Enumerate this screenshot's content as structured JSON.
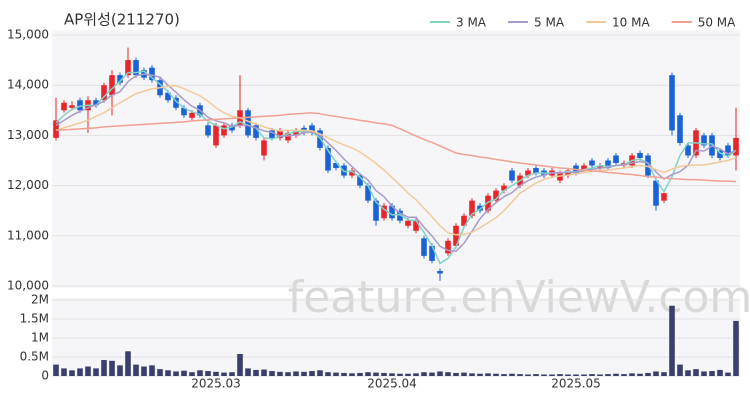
{
  "chart_data": {
    "type": "candlestick",
    "title": "AP위성(211270)",
    "watermark": "feature.enViewV.com",
    "up_color": "#e8252b",
    "down_color": "#1a63d6",
    "grid": true,
    "legend": "top-right",
    "x": [
      null,
      null,
      null,
      null,
      null,
      null,
      null,
      null,
      null,
      null,
      null,
      null,
      null,
      null,
      null,
      null,
      null,
      null,
      null,
      null,
      "2025.03",
      null,
      null,
      null,
      null,
      null,
      null,
      null,
      null,
      null,
      null,
      null,
      null,
      null,
      null,
      null,
      null,
      null,
      null,
      null,
      null,
      null,
      "2025.04",
      null,
      null,
      null,
      null,
      null,
      null,
      null,
      null,
      null,
      null,
      null,
      null,
      null,
      null,
      null,
      null,
      null,
      null,
      null,
      null,
      null,
      null,
      "2025.05",
      null,
      null,
      null,
      null,
      null,
      null,
      null,
      null,
      null,
      null,
      null,
      null,
      null,
      null,
      null,
      null,
      null,
      null,
      null,
      null
    ],
    "open": [
      12950,
      13500,
      13550,
      13700,
      13500,
      13700,
      13700,
      13800,
      14200,
      14200,
      14500,
      14300,
      14350,
      14100,
      13850,
      13750,
      13550,
      13350,
      13600,
      13200,
      12800,
      13000,
      13200,
      13200,
      13500,
      13200,
      12600,
      13100,
      12950,
      12900,
      13000,
      13150,
      13200,
      13100,
      12750,
      12450,
      12400,
      12200,
      12200,
      12000,
      11700,
      11350,
      11600,
      11500,
      11200,
      11100,
      10950,
      10800,
      10300,
      10650,
      10800,
      11200,
      11400,
      11600,
      11500,
      11700,
      11900,
      12300,
      12000,
      12200,
      12350,
      12300,
      12200,
      12100,
      12200,
      12400,
      12300,
      12500,
      12350,
      12500,
      12600,
      12400,
      12400,
      12650,
      12600,
      12100,
      11700,
      14200,
      13400,
      12800,
      12600,
      13000,
      13000,
      12700,
      12800,
      12600
    ],
    "high": [
      13750,
      13700,
      13680,
      13750,
      13780,
      13750,
      14050,
      14300,
      14250,
      14750,
      14550,
      14350,
      14400,
      14150,
      13900,
      13800,
      13600,
      13500,
      13650,
      13250,
      13250,
      13250,
      13250,
      14200,
      13550,
      13250,
      12950,
      13150,
      13150,
      13100,
      13150,
      13200,
      13250,
      13150,
      12800,
      12500,
      12450,
      12350,
      12250,
      12050,
      11750,
      11650,
      11650,
      11550,
      11350,
      11350,
      11000,
      10850,
      10350,
      10950,
      11250,
      11450,
      11750,
      11650,
      11850,
      11950,
      12050,
      12350,
      12250,
      12350,
      12400,
      12350,
      12350,
      12300,
      12350,
      12450,
      12450,
      12550,
      12450,
      12550,
      12650,
      12500,
      12650,
      12700,
      12650,
      12150,
      11900,
      14250,
      13450,
      12850,
      13150,
      13050,
      13050,
      12750,
      12850,
      13550
    ],
    "low": [
      12900,
      13450,
      13500,
      13450,
      13050,
      13550,
      13650,
      13400,
      14000,
      14150,
      14150,
      14100,
      14050,
      13750,
      13650,
      13500,
      13350,
      13300,
      13350,
      12950,
      12750,
      12950,
      13050,
      13150,
      12950,
      12900,
      12500,
      12900,
      12900,
      12850,
      12950,
      13000,
      13000,
      12700,
      12250,
      12300,
      12150,
      12150,
      11950,
      11650,
      11200,
      11300,
      11300,
      11250,
      11150,
      11050,
      10550,
      10450,
      10100,
      10600,
      10750,
      11150,
      11350,
      11450,
      11450,
      11650,
      11850,
      12050,
      11950,
      12150,
      12200,
      12150,
      12150,
      12050,
      12150,
      12200,
      12250,
      12350,
      12300,
      12300,
      12400,
      12350,
      12350,
      12500,
      12150,
      11500,
      11650,
      13000,
      12800,
      12550,
      12550,
      12750,
      12550,
      12500,
      12550,
      12300
    ],
    "close": [
      13300,
      13650,
      13600,
      13500,
      13700,
      13600,
      14000,
      14200,
      14050,
      14500,
      14200,
      14150,
      14100,
      13800,
      13700,
      13550,
      13400,
      13450,
      13400,
      13000,
      13200,
      13200,
      13100,
      13500,
      13000,
      12950,
      12900,
      12950,
      13100,
      13050,
      13100,
      13050,
      13050,
      12750,
      12300,
      12350,
      12200,
      12300,
      12000,
      11700,
      11300,
      11600,
      11350,
      11300,
      11300,
      11300,
      10600,
      10500,
      10250,
      10900,
      11200,
      11400,
      11700,
      11500,
      11800,
      11900,
      12000,
      12100,
      12200,
      12300,
      12250,
      12200,
      12300,
      12250,
      12300,
      12250,
      12400,
      12400,
      12400,
      12350,
      12450,
      12450,
      12600,
      12550,
      12200,
      11600,
      11850,
      13100,
      12850,
      12600,
      13100,
      12800,
      12600,
      12550,
      12600,
      12950
    ],
    "series": [
      {
        "name": "3 MA",
        "color": "#7fd3c6",
        "values": [
          13250,
          13400,
          13520,
          13580,
          13600,
          13600,
          13770,
          13930,
          14080,
          14250,
          14250,
          14280,
          14150,
          14020,
          13870,
          13680,
          13550,
          13470,
          13420,
          13280,
          13200,
          13130,
          13170,
          13270,
          13200,
          13150,
          12950,
          12930,
          12980,
          13030,
          13080,
          13070,
          13070,
          12950,
          12700,
          12470,
          12280,
          12280,
          12170,
          12000,
          11670,
          11530,
          11420,
          11420,
          11320,
          11300,
          11070,
          10800,
          10450,
          10550,
          10780,
          11170,
          11430,
          11530,
          11670,
          11730,
          11900,
          12000,
          12100,
          12200,
          12250,
          12250,
          12250,
          12250,
          12280,
          12270,
          12320,
          12350,
          12400,
          12380,
          12400,
          12420,
          12500,
          12530,
          12450,
          12120,
          11880,
          12180,
          12600,
          12850,
          12850,
          12830,
          12830,
          12650,
          12580,
          12700
        ]
      },
      {
        "name": "5 MA",
        "color": "#a99ac8",
        "values": [
          13200,
          13300,
          13400,
          13480,
          13550,
          13610,
          13680,
          13800,
          13870,
          14070,
          14190,
          14220,
          14200,
          14160,
          14000,
          13860,
          13710,
          13580,
          13500,
          13360,
          13290,
          13250,
          13180,
          13200,
          13200,
          13150,
          13090,
          13060,
          12980,
          12990,
          13010,
          13050,
          13070,
          13000,
          12850,
          12700,
          12530,
          12380,
          12230,
          12110,
          11900,
          11780,
          11590,
          11450,
          11370,
          11370,
          11170,
          11000,
          10790,
          10710,
          10690,
          10850,
          11090,
          11340,
          11520,
          11660,
          11780,
          11860,
          12000,
          12100,
          12170,
          12210,
          12250,
          12260,
          12260,
          12260,
          12300,
          12320,
          12350,
          12360,
          12400,
          12410,
          12450,
          12480,
          12450,
          12270,
          12130,
          12220,
          12280,
          12400,
          12700,
          12690,
          12790,
          12730,
          12630,
          12700
        ]
      },
      {
        "name": "10 MA",
        "color": "#f2c99a",
        "values": [
          13100,
          13150,
          13200,
          13250,
          13300,
          13380,
          13450,
          13550,
          13650,
          13740,
          13830,
          13880,
          13930,
          13950,
          13980,
          13990,
          13930,
          13860,
          13790,
          13680,
          13550,
          13450,
          13380,
          13350,
          13280,
          13230,
          13170,
          13120,
          13090,
          13100,
          13100,
          13100,
          13090,
          13030,
          12950,
          12880,
          12810,
          12750,
          12670,
          12560,
          12440,
          12310,
          12160,
          12010,
          11850,
          11720,
          11550,
          11380,
          11200,
          11060,
          11020,
          11030,
          11070,
          11160,
          11260,
          11360,
          11500,
          11670,
          11850,
          11950,
          12050,
          12120,
          12170,
          12190,
          12210,
          12230,
          12260,
          12280,
          12300,
          12310,
          12330,
          12350,
          12380,
          12400,
          12380,
          12320,
          12260,
          12330,
          12380,
          12400,
          12410,
          12410,
          12440,
          12470,
          12500,
          12560
        ]
      },
      {
        "name": "50 MA",
        "color": "#f2a090",
        "values": [
          13100,
          13110,
          13120,
          13130,
          13140,
          13150,
          13170,
          13180,
          13190,
          13200,
          13210,
          13220,
          13230,
          13240,
          13250,
          13260,
          13270,
          13290,
          13300,
          13310,
          13320,
          13330,
          13340,
          13350,
          13360,
          13370,
          13380,
          13390,
          13400,
          13420,
          13430,
          13440,
          13450,
          13430,
          13400,
          13380,
          13350,
          13330,
          13300,
          13280,
          13250,
          13230,
          13200,
          13130,
          13060,
          12990,
          12920,
          12860,
          12790,
          12720,
          12650,
          12620,
          12600,
          12570,
          12550,
          12520,
          12500,
          12470,
          12450,
          12430,
          12410,
          12390,
          12370,
          12350,
          12340,
          12320,
          12310,
          12290,
          12280,
          12260,
          12250,
          12230,
          12220,
          12200,
          12180,
          12170,
          12150,
          12140,
          12130,
          12120,
          12120,
          12110,
          12100,
          12090,
          12090,
          12080
        ]
      }
    ],
    "ylim": [
      10000,
      15000
    ],
    "yticks": [
      {
        "value": 10000,
        "label": "10,000"
      },
      {
        "value": 11000,
        "label": "11,000"
      },
      {
        "value": 12000,
        "label": "12,000"
      },
      {
        "value": 13000,
        "label": "13,000"
      },
      {
        "value": 14000,
        "label": "14,000"
      },
      {
        "value": 15000,
        "label": "15,000"
      }
    ],
    "volume": {
      "color": "#3b3f6b",
      "ylim": [
        0,
        2000000
      ],
      "yticks": [
        0,
        {
          "value": 500000,
          "label": "0.5M"
        },
        {
          "value": 1000000,
          "label": "1M"
        },
        {
          "value": 1500000,
          "label": "1.5M"
        },
        {
          "value": 2000000,
          "label": "2M"
        }
      ],
      "values": [
        300000,
        200000,
        150000,
        200000,
        250000,
        200000,
        420000,
        400000,
        280000,
        650000,
        300000,
        250000,
        280000,
        180000,
        150000,
        120000,
        140000,
        100000,
        150000,
        130000,
        110000,
        90000,
        100000,
        580000,
        200000,
        160000,
        170000,
        130000,
        110000,
        100000,
        120000,
        110000,
        130000,
        150000,
        100000,
        90000,
        80000,
        70000,
        80000,
        100000,
        90000,
        80000,
        70000,
        60000,
        60000,
        70000,
        100000,
        90000,
        120000,
        100000,
        80000,
        90000,
        70000,
        60000,
        70000,
        60000,
        50000,
        60000,
        50000,
        40000,
        50000,
        40000,
        40000,
        50000,
        40000,
        40000,
        40000,
        50000,
        40000,
        50000,
        60000,
        50000,
        70000,
        60000,
        80000,
        120000,
        100000,
        1850000,
        300000,
        150000,
        180000,
        120000,
        130000,
        160000,
        90000,
        1450000
      ]
    }
  }
}
